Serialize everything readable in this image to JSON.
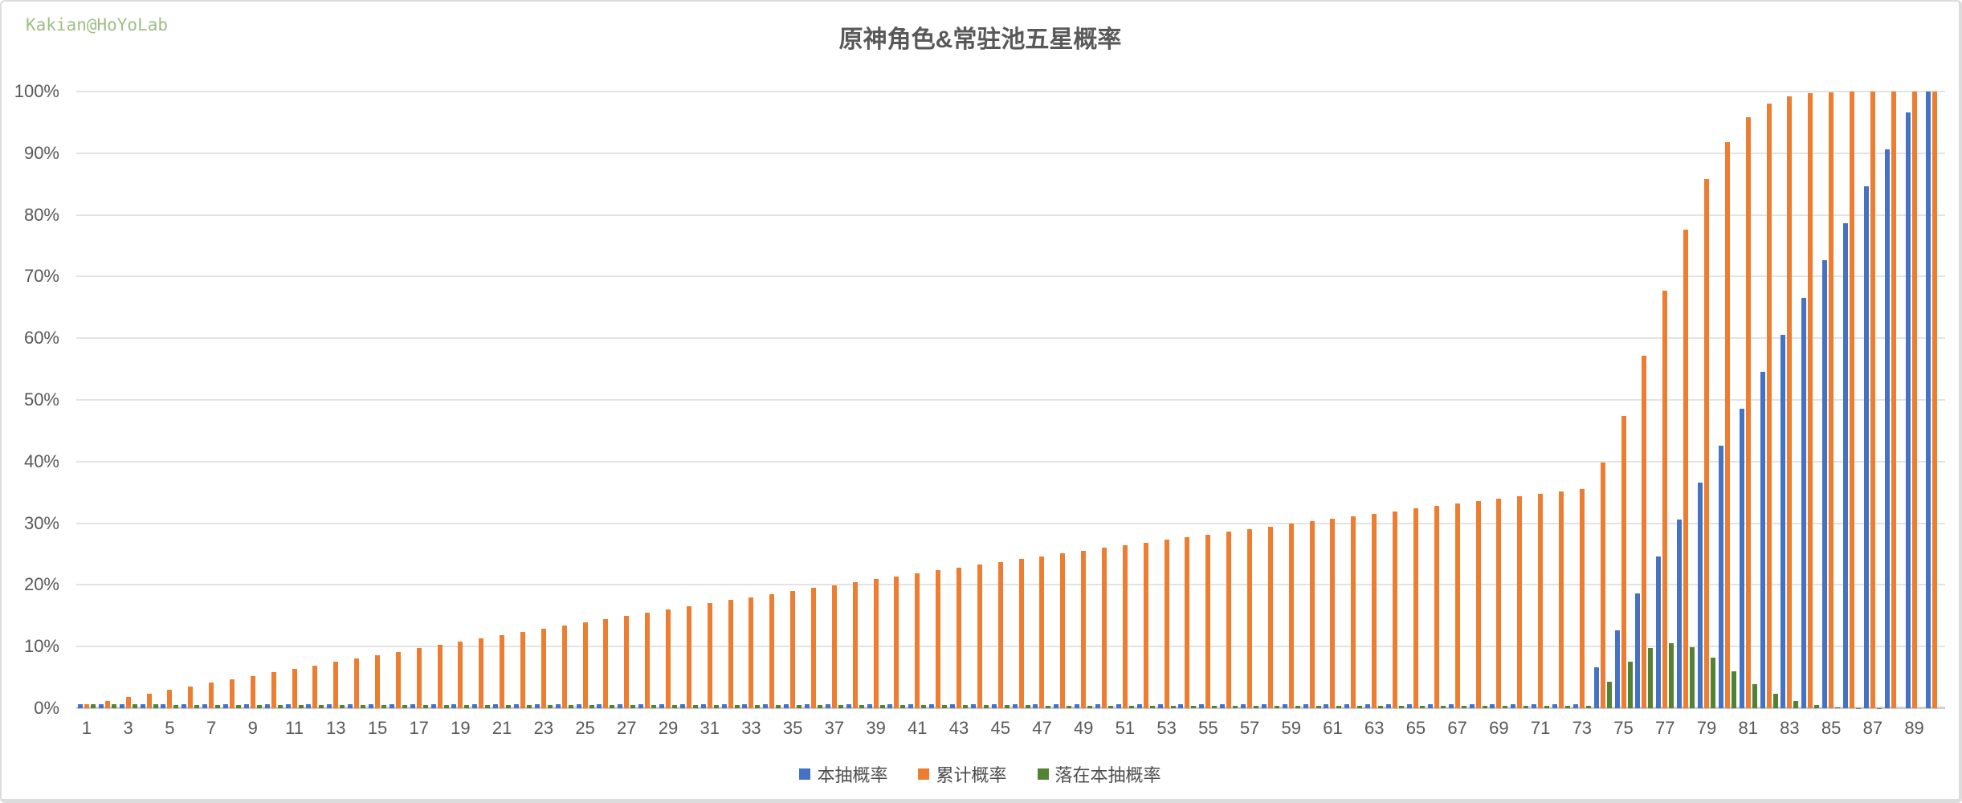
{
  "watermark": {
    "text": "Kakian@HoYoLab",
    "color": "#9fbe85"
  },
  "chart_data": {
    "type": "bar",
    "title": "原神角色&常驻池五星概率",
    "x_count": 90,
    "x_tick_labels": [
      "1",
      "3",
      "5",
      "7",
      "9",
      "11",
      "13",
      "15",
      "17",
      "19",
      "21",
      "23",
      "25",
      "27",
      "29",
      "31",
      "33",
      "35",
      "37",
      "39",
      "41",
      "43",
      "45",
      "47",
      "49",
      "51",
      "53",
      "55",
      "57",
      "59",
      "61",
      "63",
      "65",
      "67",
      "69",
      "71",
      "73",
      "75",
      "77",
      "79",
      "81",
      "83",
      "85",
      "87",
      "89"
    ],
    "y_axis": {
      "min": 0,
      "max": 100,
      "step": 10,
      "tick_labels": [
        "0%",
        "10%",
        "20%",
        "30%",
        "40%",
        "50%",
        "60%",
        "70%",
        "80%",
        "90%",
        "100%"
      ]
    },
    "grid": true,
    "legend_position": "bottom",
    "series": [
      {
        "name": "本抽概率",
        "color": "#4472C4",
        "values": [
          0.6,
          0.6,
          0.6,
          0.6,
          0.6,
          0.6,
          0.6,
          0.6,
          0.6,
          0.6,
          0.6,
          0.6,
          0.6,
          0.6,
          0.6,
          0.6,
          0.6,
          0.6,
          0.6,
          0.6,
          0.6,
          0.6,
          0.6,
          0.6,
          0.6,
          0.6,
          0.6,
          0.6,
          0.6,
          0.6,
          0.6,
          0.6,
          0.6,
          0.6,
          0.6,
          0.6,
          0.6,
          0.6,
          0.6,
          0.6,
          0.6,
          0.6,
          0.6,
          0.6,
          0.6,
          0.6,
          0.6,
          0.6,
          0.6,
          0.6,
          0.6,
          0.6,
          0.6,
          0.6,
          0.6,
          0.6,
          0.6,
          0.6,
          0.6,
          0.6,
          0.6,
          0.6,
          0.6,
          0.6,
          0.6,
          0.6,
          0.6,
          0.6,
          0.6,
          0.6,
          0.6,
          0.6,
          0.6,
          6.6,
          12.6,
          18.6,
          24.6,
          30.6,
          36.6,
          42.6,
          48.6,
          54.6,
          60.6,
          66.6,
          72.6,
          78.6,
          84.6,
          90.6,
          96.6,
          100
        ]
      },
      {
        "name": "累计概率",
        "color": "#ED7D31",
        "values": [
          0.6,
          1.196,
          1.789,
          2.379,
          2.964,
          3.546,
          4.125,
          4.7,
          5.272,
          5.841,
          6.406,
          6.967,
          7.525,
          8.08,
          8.632,
          9.18,
          9.725,
          10.266,
          10.805,
          11.34,
          11.872,
          12.401,
          12.926,
          13.449,
          13.968,
          14.484,
          14.997,
          15.507,
          16.014,
          16.518,
          17.019,
          17.517,
          18.012,
          18.504,
          18.993,
          19.479,
          19.962,
          20.442,
          20.92,
          21.394,
          21.866,
          22.335,
          22.8,
          23.264,
          23.724,
          24.182,
          24.637,
          25.089,
          25.538,
          25.985,
          26.429,
          26.871,
          27.309,
          27.746,
          28.179,
          28.61,
          29.038,
          29.464,
          29.887,
          30.308,
          30.726,
          31.142,
          31.555,
          31.966,
          32.374,
          32.78,
          33.183,
          33.584,
          33.982,
          34.378,
          34.772,
          35.164,
          35.553,
          39.805,
          47.39,
          57.175,
          67.71,
          77.591,
          85.792,
          91.845,
          95.808,
          98.097,
          99.25,
          99.75,
          99.932,
          99.985,
          99.998,
          100,
          100,
          100
        ]
      },
      {
        "name": "落在本抽概率",
        "color": "#548235",
        "values": [
          0.6,
          0.596,
          0.593,
          0.589,
          0.586,
          0.582,
          0.579,
          0.575,
          0.572,
          0.568,
          0.565,
          0.562,
          0.558,
          0.555,
          0.552,
          0.548,
          0.545,
          0.542,
          0.538,
          0.535,
          0.532,
          0.529,
          0.526,
          0.522,
          0.519,
          0.516,
          0.513,
          0.51,
          0.507,
          0.504,
          0.501,
          0.498,
          0.495,
          0.492,
          0.489,
          0.486,
          0.483,
          0.48,
          0.477,
          0.474,
          0.472,
          0.469,
          0.466,
          0.463,
          0.46,
          0.458,
          0.455,
          0.452,
          0.449,
          0.447,
          0.444,
          0.441,
          0.439,
          0.436,
          0.434,
          0.431,
          0.428,
          0.426,
          0.423,
          0.421,
          0.418,
          0.416,
          0.413,
          0.411,
          0.408,
          0.406,
          0.403,
          0.401,
          0.398,
          0.396,
          0.394,
          0.391,
          0.389,
          4.254,
          7.585,
          9.786,
          10.535,
          9.881,
          8.202,
          6.052,
          3.963,
          2.289,
          1.153,
          0.499,
          0.182,
          0.054,
          0.012,
          0.002,
          0,
          0
        ]
      }
    ]
  }
}
